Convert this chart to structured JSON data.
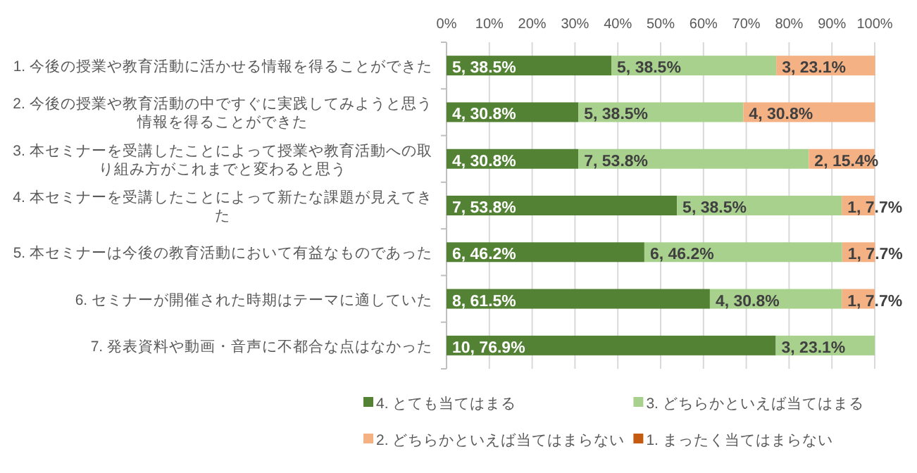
{
  "chart_data": {
    "type": "bar",
    "orientation": "horizontal",
    "stacked": true,
    "categories": [
      "1. 今後の授業や教育活動に活かせる情報を得ることができた",
      "2. 今後の授業や教育活動の中ですぐに実践してみようと思う情報を得ることができた",
      "3. 本セミナーを受講したことによって授業や教育活動への取り組み方がこれまでと変わると思う",
      "4. 本セミナーを受講したことによって新たな課題が見えてきた",
      "5. 本セミナーは今後の教育活動において有益なものであった",
      "6. セミナーが開催された時期はテーマに適していた",
      "7. 発表資料や動画・音声に不都合な点はなかった"
    ],
    "series": [
      {
        "name": "4. とても当てはまる",
        "color": "#548235",
        "values": [
          38.5,
          30.8,
          30.8,
          53.8,
          46.2,
          61.5,
          76.9
        ],
        "value_labels": [
          "5, 38.5%",
          "4, 30.8%",
          "4, 30.8%",
          "7, 53.8%",
          "6, 46.2%",
          "8, 61.5%",
          "10, 76.9%"
        ]
      },
      {
        "name": "3. どちらかといえば当てはまる",
        "color": "#a9d18e",
        "values": [
          38.5,
          38.5,
          53.8,
          38.5,
          46.2,
          30.8,
          23.1
        ],
        "value_labels": [
          "5, 38.5%",
          "5, 38.5%",
          "7, 53.8%",
          "5, 38.5%",
          "6, 46.2%",
          "4, 30.8%",
          "3, 23.1%"
        ]
      },
      {
        "name": "2. どちらかといえば当てはまらない",
        "color": "#f4b183",
        "values": [
          23.1,
          30.8,
          15.4,
          7.7,
          7.7,
          7.7,
          0
        ],
        "value_labels": [
          "3, 23.1%",
          "4, 30.8%",
          "2, 15.4%",
          "1, 7.7%",
          "1, 7.7%",
          "1, 7.7%",
          null
        ]
      },
      {
        "name": "1. まったく当てはまらない",
        "color": "#c55a11",
        "values": [
          0,
          0,
          0,
          0,
          0,
          0,
          0
        ],
        "value_labels": [
          null,
          null,
          null,
          null,
          null,
          null,
          null
        ]
      }
    ],
    "xlim": [
      0,
      100
    ],
    "xticks": [
      {
        "value": 0,
        "label": "0%"
      },
      {
        "value": 10,
        "label": "10%"
      },
      {
        "value": 20,
        "label": "20%"
      },
      {
        "value": 30,
        "label": "30%"
      },
      {
        "value": 40,
        "label": "40%"
      },
      {
        "value": 50,
        "label": "50%"
      },
      {
        "value": 60,
        "label": "60%"
      },
      {
        "value": 70,
        "label": "70%"
      },
      {
        "value": 80,
        "label": "80%"
      },
      {
        "value": 90,
        "label": "90%"
      },
      {
        "value": 100,
        "label": "100%"
      }
    ],
    "grid": "x",
    "legend": "bottom"
  }
}
